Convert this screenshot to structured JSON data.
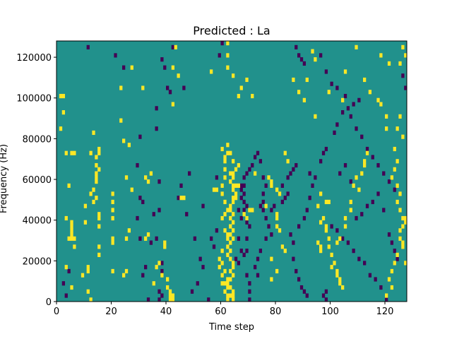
{
  "chart_data": {
    "type": "heatmap",
    "title": "Predicted : La",
    "xlabel": "Time step",
    "ylabel": "Frequency (Hz)",
    "xlim": [
      0,
      128
    ],
    "ylim": [
      0,
      128000
    ],
    "xticks": [
      0,
      20,
      40,
      60,
      80,
      100,
      120
    ],
    "yticks": [
      0,
      20000,
      40000,
      60000,
      80000,
      100000,
      120000
    ],
    "n_time_steps": 128,
    "n_freq_bins": 64,
    "colors": {
      "background": "#21918c",
      "low": "#440154",
      "high": "#fde725"
    },
    "cells_high": [
      [
        1,
        100000
      ],
      [
        2,
        100000
      ],
      [
        2,
        92000
      ],
      [
        1,
        84000
      ],
      [
        3,
        72000
      ],
      [
        5,
        72000
      ],
      [
        6,
        72000
      ],
      [
        4,
        56000
      ],
      [
        3,
        40000
      ],
      [
        5,
        38000
      ],
      [
        5,
        36000
      ],
      [
        5,
        34000
      ],
      [
        5,
        32000
      ],
      [
        4,
        30000
      ],
      [
        5,
        30000
      ],
      [
        6,
        30000
      ],
      [
        6,
        26000
      ],
      [
        3,
        16000
      ],
      [
        10,
        46000
      ],
      [
        10,
        38000
      ],
      [
        11,
        16000
      ],
      [
        11,
        14000
      ],
      [
        9,
        12000
      ],
      [
        5,
        6000
      ],
      [
        11,
        4000
      ],
      [
        12,
        0
      ],
      [
        14,
        50000
      ],
      [
        12,
        52000
      ],
      [
        13,
        54000
      ],
      [
        13,
        48000
      ],
      [
        14,
        58000
      ],
      [
        14,
        62000
      ],
      [
        14,
        66000
      ],
      [
        14,
        70000
      ],
      [
        15,
        72000
      ],
      [
        15,
        74000
      ],
      [
        12,
        72000
      ],
      [
        13,
        82000
      ],
      [
        15,
        64000
      ],
      [
        14,
        60000
      ],
      [
        15,
        42000
      ],
      [
        15,
        40000
      ],
      [
        15,
        36000
      ],
      [
        15,
        26000
      ],
      [
        15,
        22000
      ],
      [
        20,
        40000
      ],
      [
        20,
        44000
      ],
      [
        20,
        48000
      ],
      [
        20,
        52000
      ],
      [
        20,
        30000
      ],
      [
        20,
        28000
      ],
      [
        20,
        14000
      ],
      [
        23,
        88000
      ],
      [
        24,
        78000
      ],
      [
        26,
        76000
      ],
      [
        23,
        104000
      ],
      [
        27,
        114000
      ],
      [
        26,
        34000
      ],
      [
        27,
        54000
      ],
      [
        25,
        60000
      ],
      [
        25,
        30000
      ],
      [
        24,
        12000
      ],
      [
        25,
        14000
      ],
      [
        31,
        104000
      ],
      [
        32,
        60000
      ],
      [
        33,
        58000
      ],
      [
        33,
        32000
      ],
      [
        34,
        62000
      ],
      [
        32,
        30000
      ],
      [
        35,
        8000
      ],
      [
        36,
        16000
      ],
      [
        37,
        18000
      ],
      [
        38,
        12000
      ],
      [
        39,
        26000
      ],
      [
        39,
        28000
      ],
      [
        40,
        6000
      ],
      [
        41,
        4000
      ],
      [
        41,
        2000
      ],
      [
        41,
        0
      ],
      [
        42,
        0
      ],
      [
        42,
        2000
      ],
      [
        40,
        10000
      ],
      [
        42,
        114000
      ],
      [
        42,
        96000
      ],
      [
        43,
        124000
      ],
      [
        44,
        110000
      ],
      [
        45,
        50000
      ],
      [
        46,
        50000
      ],
      [
        60,
        52000
      ],
      [
        60,
        56000
      ],
      [
        61,
        60000
      ],
      [
        61,
        64000
      ],
      [
        61,
        68000
      ],
      [
        61,
        70000
      ],
      [
        60,
        74000
      ],
      [
        62,
        72000
      ],
      [
        62,
        76000
      ],
      [
        60,
        40000
      ],
      [
        61,
        42000
      ],
      [
        62,
        44000
      ],
      [
        63,
        46000
      ],
      [
        61,
        34000
      ],
      [
        62,
        32000
      ],
      [
        62,
        30000
      ],
      [
        63,
        28000
      ],
      [
        62,
        26000
      ],
      [
        63,
        24000
      ],
      [
        62,
        22000
      ],
      [
        63,
        20000
      ],
      [
        64,
        18000
      ],
      [
        64,
        16000
      ],
      [
        63,
        14000
      ],
      [
        64,
        12000
      ],
      [
        63,
        10000
      ],
      [
        60,
        8000
      ],
      [
        61,
        8000
      ],
      [
        62,
        8000
      ],
      [
        63,
        6000
      ],
      [
        62,
        6000
      ],
      [
        61,
        4000
      ],
      [
        64,
        4000
      ],
      [
        62,
        2000
      ],
      [
        63,
        2000
      ],
      [
        64,
        2000
      ],
      [
        62,
        0
      ],
      [
        64,
        0
      ],
      [
        60,
        24000
      ],
      [
        59,
        20000
      ],
      [
        60,
        18000
      ],
      [
        59,
        16000
      ],
      [
        61,
        14000
      ],
      [
        60,
        12000
      ],
      [
        62,
        10000
      ],
      [
        64,
        56000
      ],
      [
        65,
        56000
      ],
      [
        66,
        56000
      ],
      [
        64,
        54000
      ],
      [
        65,
        52000
      ],
      [
        64,
        50000
      ],
      [
        65,
        50000
      ],
      [
        64,
        48000
      ],
      [
        63,
        44000
      ],
      [
        64,
        42000
      ],
      [
        63,
        40000
      ],
      [
        64,
        38000
      ],
      [
        63,
        36000
      ],
      [
        64,
        34000
      ],
      [
        63,
        32000
      ],
      [
        64,
        30000
      ],
      [
        63,
        58000
      ],
      [
        64,
        60000
      ],
      [
        63,
        62000
      ],
      [
        65,
        64000
      ],
      [
        66,
        66000
      ],
      [
        64,
        68000
      ],
      [
        63,
        72000
      ],
      [
        64,
        62000
      ],
      [
        68,
        42000
      ],
      [
        69,
        40000
      ],
      [
        70,
        44000
      ],
      [
        71,
        44000
      ],
      [
        67,
        104000
      ],
      [
        69,
        108000
      ],
      [
        71,
        100000
      ],
      [
        66,
        100000
      ],
      [
        64,
        110000
      ],
      [
        62,
        114000
      ],
      [
        62,
        120000
      ],
      [
        62,
        126000
      ],
      [
        56,
        112000
      ],
      [
        57,
        54000
      ],
      [
        58,
        54000
      ],
      [
        61,
        48000
      ],
      [
        72,
        62000
      ],
      [
        76,
        46000
      ],
      [
        77,
        60000
      ],
      [
        78,
        56000
      ],
      [
        78,
        58000
      ],
      [
        80,
        42000
      ],
      [
        80,
        40000
      ],
      [
        83,
        72000
      ],
      [
        84,
        68000
      ],
      [
        81,
        52000
      ],
      [
        80,
        54000
      ],
      [
        82,
        26000
      ],
      [
        83,
        24000
      ],
      [
        78,
        20000
      ],
      [
        80,
        14000
      ],
      [
        78,
        10000
      ],
      [
        80,
        36000
      ],
      [
        81,
        34000
      ],
      [
        86,
        108000
      ],
      [
        88,
        102000
      ],
      [
        91,
        108000
      ],
      [
        93,
        122000
      ],
      [
        94,
        118000
      ],
      [
        90,
        98000
      ],
      [
        94,
        90000
      ],
      [
        96,
        52000
      ],
      [
        95,
        46000
      ],
      [
        98,
        48000
      ],
      [
        99,
        48000
      ],
      [
        97,
        40000
      ],
      [
        96,
        38000
      ],
      [
        98,
        36000
      ],
      [
        98,
        34000
      ],
      [
        99,
        30000
      ],
      [
        95,
        28000
      ],
      [
        96,
        26000
      ],
      [
        96,
        24000
      ],
      [
        99,
        26000
      ],
      [
        100,
        22000
      ],
      [
        101,
        18000
      ],
      [
        100,
        16000
      ],
      [
        102,
        14000
      ],
      [
        102,
        12000
      ],
      [
        103,
        10000
      ],
      [
        103,
        8000
      ],
      [
        104,
        6000
      ],
      [
        102,
        28000
      ],
      [
        103,
        30000
      ],
      [
        105,
        36000
      ],
      [
        105,
        40000
      ],
      [
        107,
        44000
      ],
      [
        107,
        48000
      ],
      [
        108,
        56000
      ],
      [
        110,
        54000
      ],
      [
        109,
        60000
      ],
      [
        111,
        62000
      ],
      [
        112,
        66000
      ],
      [
        112,
        68000
      ],
      [
        113,
        72000
      ],
      [
        99,
        102000
      ],
      [
        104,
        98000
      ],
      [
        105,
        112000
      ],
      [
        109,
        124000
      ],
      [
        112,
        108000
      ],
      [
        114,
        102000
      ],
      [
        117,
        98000
      ],
      [
        118,
        96000
      ],
      [
        120,
        90000
      ],
      [
        120,
        84000
      ],
      [
        124,
        84000
      ],
      [
        125,
        90000
      ],
      [
        126,
        80000
      ],
      [
        123,
        74000
      ],
      [
        124,
        68000
      ],
      [
        123,
        64000
      ],
      [
        122,
        60000
      ],
      [
        124,
        56000
      ],
      [
        125,
        52000
      ],
      [
        124,
        48000
      ],
      [
        125,
        44000
      ],
      [
        126,
        40000
      ],
      [
        126,
        36000
      ],
      [
        125,
        34000
      ],
      [
        125,
        30000
      ],
      [
        126,
        28000
      ],
      [
        126,
        26000
      ],
      [
        124,
        22000
      ],
      [
        123,
        18000
      ],
      [
        122,
        14000
      ],
      [
        121,
        10000
      ],
      [
        122,
        6000
      ],
      [
        120,
        2000
      ],
      [
        127,
        18000
      ],
      [
        127,
        38000
      ],
      [
        127,
        40000
      ],
      [
        118,
        120000
      ],
      [
        121,
        116000
      ],
      [
        127,
        120000
      ],
      [
        126,
        124000
      ],
      [
        125,
        116000
      ]
    ],
    "cells_low": [
      [
        2,
        8000
      ],
      [
        4,
        14000
      ],
      [
        3,
        2000
      ],
      [
        11,
        124000
      ],
      [
        21,
        120000
      ],
      [
        24,
        114000
      ],
      [
        29,
        40000
      ],
      [
        29,
        66000
      ],
      [
        30,
        50000
      ],
      [
        30,
        80000
      ],
      [
        31,
        12000
      ],
      [
        30,
        30000
      ],
      [
        31,
        48000
      ],
      [
        32,
        16000
      ],
      [
        33,
        0
      ],
      [
        35,
        42000
      ],
      [
        37,
        4000
      ],
      [
        37,
        0
      ],
      [
        38,
        2000
      ],
      [
        36,
        30000
      ],
      [
        34,
        28000
      ],
      [
        36,
        84000
      ],
      [
        36,
        94000
      ],
      [
        37,
        58000
      ],
      [
        38,
        18000
      ],
      [
        37,
        44000
      ],
      [
        38,
        14000
      ],
      [
        38,
        118000
      ],
      [
        39,
        114000
      ],
      [
        40,
        104000
      ],
      [
        41,
        102000
      ],
      [
        42,
        124000
      ],
      [
        44,
        50000
      ],
      [
        45,
        56000
      ],
      [
        46,
        104000
      ],
      [
        47,
        42000
      ],
      [
        48,
        62000
      ],
      [
        49,
        4000
      ],
      [
        50,
        30000
      ],
      [
        51,
        8000
      ],
      [
        52,
        20000
      ],
      [
        53,
        46000
      ],
      [
        53,
        16000
      ],
      [
        55,
        0
      ],
      [
        56,
        30000
      ],
      [
        57,
        26000
      ],
      [
        58,
        34000
      ],
      [
        58,
        60000
      ],
      [
        59,
        120000
      ],
      [
        60,
        126000
      ],
      [
        67,
        56000
      ],
      [
        68,
        56000
      ],
      [
        67,
        54000
      ],
      [
        68,
        52000
      ],
      [
        67,
        50000
      ],
      [
        68,
        48000
      ],
      [
        69,
        46000
      ],
      [
        68,
        44000
      ],
      [
        67,
        40000
      ],
      [
        69,
        38000
      ],
      [
        70,
        36000
      ],
      [
        69,
        30000
      ],
      [
        69,
        24000
      ],
      [
        68,
        22000
      ],
      [
        69,
        12000
      ],
      [
        70,
        8000
      ],
      [
        70,
        4000
      ],
      [
        70,
        0
      ],
      [
        66,
        44000
      ],
      [
        66,
        18000
      ],
      [
        65,
        20000
      ],
      [
        67,
        24000
      ],
      [
        66,
        30000
      ],
      [
        68,
        60000
      ],
      [
        69,
        62000
      ],
      [
        70,
        64000
      ],
      [
        71,
        66000
      ],
      [
        72,
        70000
      ],
      [
        73,
        72000
      ],
      [
        74,
        68000
      ],
      [
        75,
        60000
      ],
      [
        76,
        56000
      ],
      [
        75,
        52000
      ],
      [
        75,
        48000
      ],
      [
        74,
        46000
      ],
      [
        75,
        44000
      ],
      [
        76,
        40000
      ],
      [
        77,
        36000
      ],
      [
        78,
        32000
      ],
      [
        76,
        30000
      ],
      [
        74,
        24000
      ],
      [
        73,
        20000
      ],
      [
        72,
        16000
      ],
      [
        73,
        12000
      ],
      [
        78,
        44000
      ],
      [
        79,
        46000
      ],
      [
        82,
        48000
      ],
      [
        83,
        50000
      ],
      [
        84,
        52000
      ],
      [
        82,
        56000
      ],
      [
        84,
        60000
      ],
      [
        85,
        62000
      ],
      [
        86,
        64000
      ],
      [
        87,
        66000
      ],
      [
        85,
        32000
      ],
      [
        86,
        28000
      ],
      [
        86,
        20000
      ],
      [
        87,
        14000
      ],
      [
        88,
        10000
      ],
      [
        89,
        6000
      ],
      [
        90,
        4000
      ],
      [
        91,
        2000
      ],
      [
        88,
        36000
      ],
      [
        90,
        40000
      ],
      [
        91,
        44000
      ],
      [
        92,
        50000
      ],
      [
        93,
        56000
      ],
      [
        94,
        60000
      ],
      [
        92,
        62000
      ],
      [
        96,
        68000
      ],
      [
        97,
        72000
      ],
      [
        98,
        74000
      ],
      [
        101,
        82000
      ],
      [
        102,
        86000
      ],
      [
        104,
        92000
      ],
      [
        106,
        94000
      ],
      [
        108,
        96000
      ],
      [
        110,
        98000
      ],
      [
        87,
        124000
      ],
      [
        88,
        120000
      ],
      [
        89,
        118000
      ],
      [
        90,
        116000
      ],
      [
        96,
        120000
      ],
      [
        98,
        112000
      ],
      [
        100,
        106000
      ],
      [
        102,
        104000
      ],
      [
        105,
        100000
      ],
      [
        107,
        90000
      ],
      [
        109,
        84000
      ],
      [
        111,
        80000
      ],
      [
        113,
        74000
      ],
      [
        115,
        70000
      ],
      [
        117,
        66000
      ],
      [
        119,
        62000
      ],
      [
        121,
        58000
      ],
      [
        123,
        54000
      ],
      [
        98,
        0
      ],
      [
        98,
        4000
      ],
      [
        97,
        2000
      ],
      [
        100,
        36000
      ],
      [
        102,
        34000
      ],
      [
        104,
        30000
      ],
      [
        106,
        28000
      ],
      [
        108,
        24000
      ],
      [
        110,
        20000
      ],
      [
        112,
        18000
      ],
      [
        114,
        12000
      ],
      [
        116,
        10000
      ],
      [
        118,
        6000
      ],
      [
        120,
        0
      ],
      [
        121,
        32000
      ],
      [
        122,
        28000
      ],
      [
        123,
        24000
      ],
      [
        124,
        20000
      ],
      [
        109,
        40000
      ],
      [
        111,
        42000
      ],
      [
        113,
        46000
      ],
      [
        115,
        48000
      ],
      [
        117,
        52000
      ],
      [
        119,
        44000
      ],
      [
        103,
        62000
      ],
      [
        105,
        66000
      ],
      [
        107,
        58000
      ],
      [
        126,
        110000
      ],
      [
        127,
        104000
      ]
    ]
  }
}
